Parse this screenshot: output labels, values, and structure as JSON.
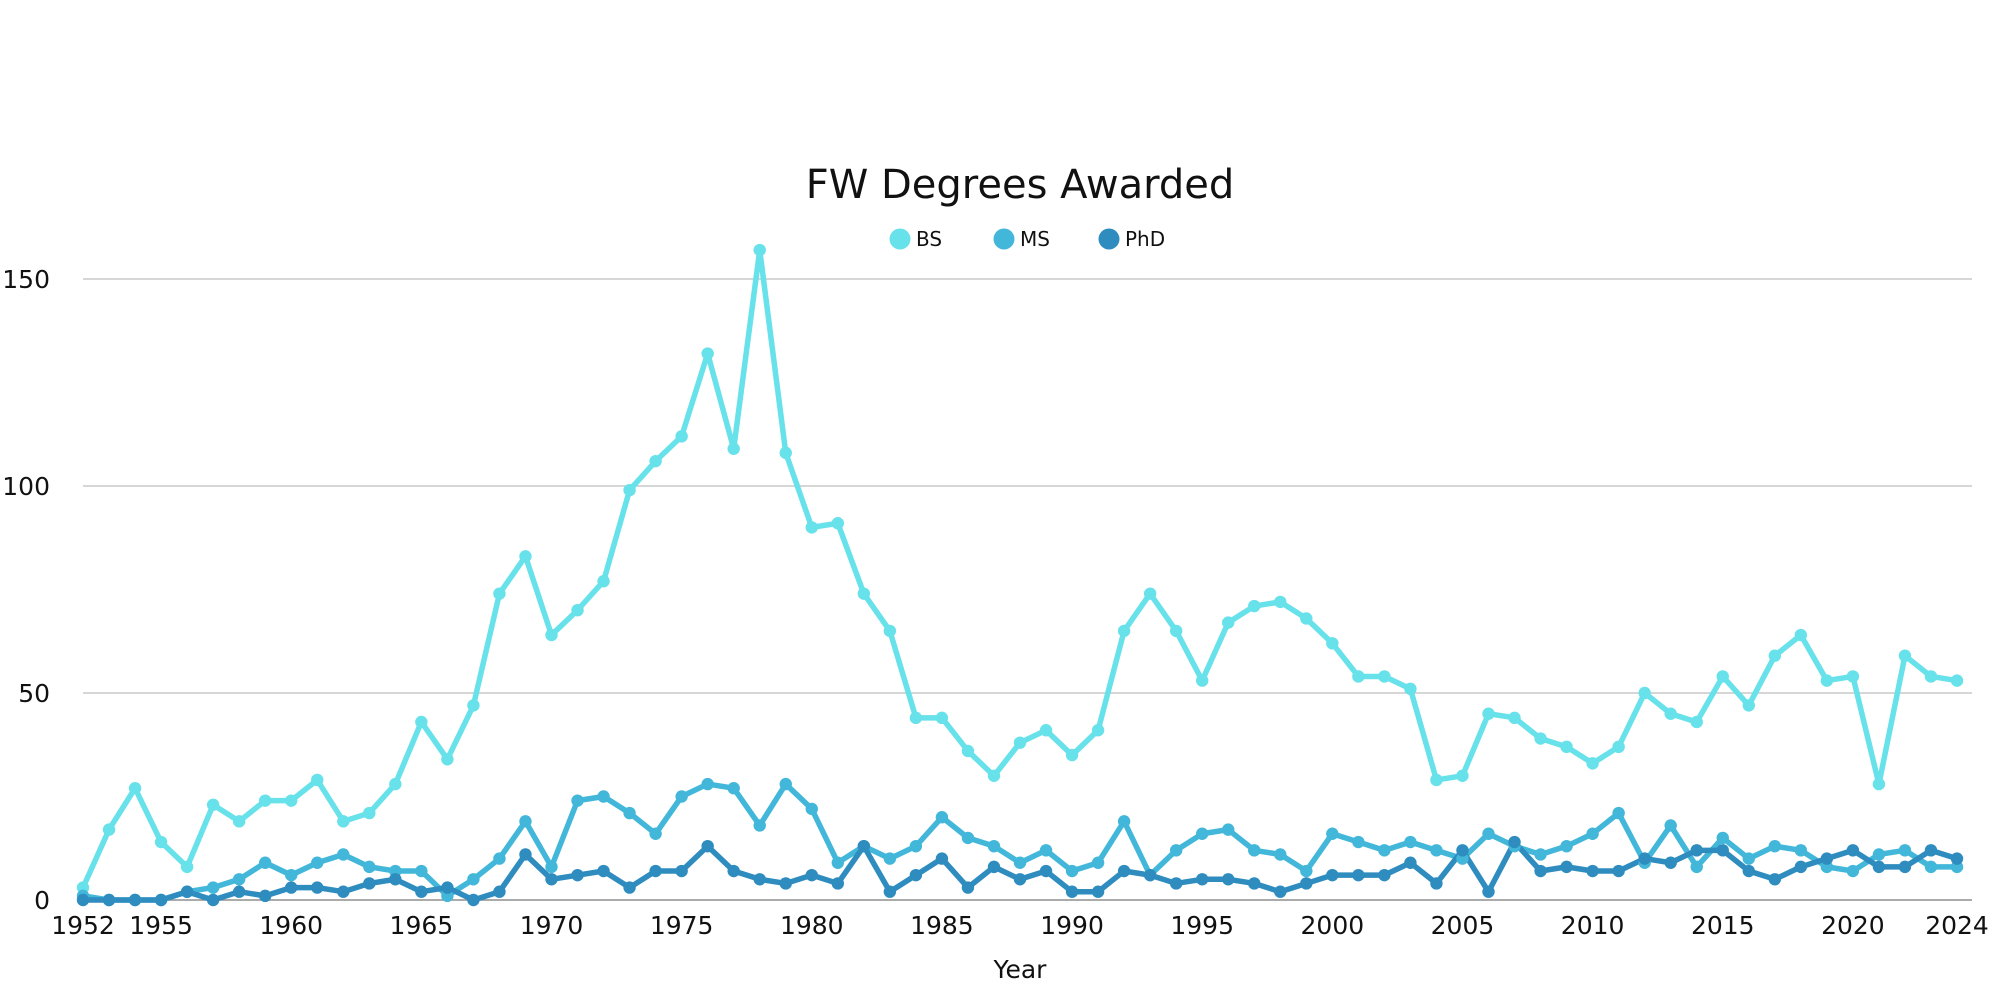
{
  "chart_data": {
    "type": "line",
    "title": "FW Degrees Awarded",
    "xlabel": "Year",
    "ylabel": "",
    "x": [
      1952,
      1953,
      1954,
      1955,
      1956,
      1957,
      1958,
      1959,
      1960,
      1961,
      1962,
      1963,
      1964,
      1965,
      1966,
      1967,
      1968,
      1969,
      1970,
      1971,
      1972,
      1973,
      1974,
      1975,
      1976,
      1977,
      1978,
      1979,
      1980,
      1981,
      1982,
      1983,
      1984,
      1985,
      1986,
      1987,
      1988,
      1989,
      1990,
      1991,
      1992,
      1993,
      1994,
      1995,
      1996,
      1997,
      1998,
      1999,
      2000,
      2001,
      2002,
      2003,
      2004,
      2005,
      2006,
      2007,
      2008,
      2009,
      2010,
      2011,
      2012,
      2013,
      2014,
      2015,
      2016,
      2017,
      2018,
      2019,
      2020,
      2021,
      2022,
      2023,
      2024
    ],
    "x_ticks": [
      "1952",
      "1955",
      "1960",
      "1965",
      "1970",
      "1975",
      "1980",
      "1985",
      "1990",
      "1995",
      "2000",
      "2005",
      "2010",
      "2015",
      "2020",
      "2024"
    ],
    "y_ticks": [
      "0",
      "50",
      "100",
      "150"
    ],
    "ylim": [
      0,
      150
    ],
    "grid": true,
    "legend_position": "top-center",
    "series": [
      {
        "name": "BS",
        "color": "#67e1ea",
        "values": [
          3,
          17,
          27,
          14,
          8,
          23,
          19,
          24,
          24,
          29,
          19,
          21,
          28,
          43,
          34,
          47,
          74,
          83,
          64,
          70,
          77,
          99,
          106,
          112,
          132,
          109,
          157,
          108,
          90,
          91,
          74,
          65,
          44,
          44,
          36,
          30,
          38,
          41,
          35,
          41,
          65,
          74,
          65,
          53,
          67,
          71,
          72,
          68,
          62,
          54,
          54,
          51,
          29,
          30,
          45,
          44,
          39,
          37,
          33,
          37,
          50,
          45,
          43,
          54,
          47,
          59,
          64,
          53,
          54,
          28,
          59,
          54,
          53
        ]
      },
      {
        "name": "MS",
        "color": "#42b7d9",
        "values": [
          1,
          0,
          0,
          0,
          2,
          3,
          5,
          9,
          6,
          9,
          11,
          8,
          7,
          7,
          1,
          5,
          10,
          19,
          8,
          24,
          25,
          21,
          16,
          25,
          28,
          27,
          18,
          28,
          22,
          9,
          13,
          10,
          13,
          20,
          15,
          13,
          9,
          12,
          7,
          9,
          19,
          6,
          12,
          16,
          17,
          12,
          11,
          7,
          16,
          14,
          12,
          14,
          12,
          10,
          16,
          13,
          11,
          13,
          16,
          21,
          9,
          18,
          8,
          15,
          10,
          13,
          12,
          8,
          7,
          11,
          12,
          8,
          8
        ]
      },
      {
        "name": "PhD",
        "color": "#2e8cbf",
        "values": [
          0,
          0,
          0,
          0,
          2,
          0,
          2,
          1,
          3,
          3,
          2,
          4,
          5,
          2,
          3,
          0,
          2,
          11,
          5,
          6,
          7,
          3,
          7,
          7,
          13,
          7,
          5,
          4,
          6,
          4,
          13,
          2,
          6,
          10,
          3,
          8,
          5,
          7,
          2,
          2,
          7,
          6,
          4,
          5,
          5,
          4,
          2,
          4,
          6,
          6,
          6,
          9,
          4,
          12,
          2,
          14,
          7,
          8,
          7,
          7,
          10,
          9,
          12,
          12,
          7,
          5,
          8,
          10,
          12,
          8,
          8,
          12,
          10
        ]
      }
    ]
  }
}
